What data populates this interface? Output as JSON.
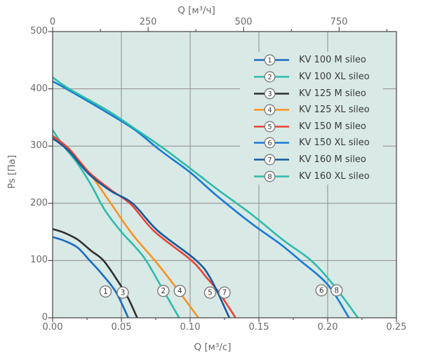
{
  "colors": {
    "background": "#ffffff",
    "plot_background": "#d9e9e6",
    "grid": "#8c8c8c",
    "axis": "#4f4f4f",
    "tick_text": "#696969",
    "legend_text": "#3a3a3a",
    "marker_stroke": "#7a7a7a",
    "marker_number": "#333333"
  },
  "chart_data": {
    "type": "line",
    "title": "",
    "xlabel_top": "Q [м³/ч]",
    "xlabel_bottom": "Q [м³/с]",
    "ylabel": "Ps [Па]",
    "xlim": [
      0,
      0.25
    ],
    "ylim": [
      0,
      500
    ],
    "grid": true,
    "legend_position": "top-right",
    "x_axis_top": {
      "unit": "м³/ч",
      "max": 900,
      "major_ticks": [
        0,
        250,
        500,
        750
      ],
      "minor_ticks": [
        125,
        375,
        625,
        875
      ],
      "labels": [
        "0",
        "250",
        "500",
        "750"
      ]
    },
    "x_axis_bottom": {
      "unit": "м³/с",
      "major_ticks": [
        0,
        0.05,
        0.1,
        0.15,
        0.2,
        0.25
      ],
      "minor_ticks": [
        0.025,
        0.075,
        0.125,
        0.175,
        0.225
      ],
      "labels": [
        "0.00",
        "0.05",
        "0.10",
        "0.15",
        "0.20",
        "0.25"
      ]
    },
    "y_axis": {
      "unit": "Па",
      "major_ticks": [
        500,
        400,
        300,
        200,
        100,
        0
      ],
      "labels": [
        "500",
        "400",
        "300",
        "200",
        "100",
        "0"
      ]
    },
    "series": [
      {
        "num": "1",
        "label": "KV 100 M sileo",
        "color": "#1b6cc0",
        "points": [
          [
            0,
            141
          ],
          [
            0.008,
            135
          ],
          [
            0.018,
            123
          ],
          [
            0.027,
            100
          ],
          [
            0.036,
            76
          ],
          [
            0.046,
            45
          ],
          [
            0.055,
            0
          ]
        ],
        "marker": {
          "x": 0.0385,
          "y": 46
        }
      },
      {
        "num": "2",
        "label": "KV 100 XL sileo",
        "color": "#2cbcaa",
        "points": [
          [
            0,
            328
          ],
          [
            0.008,
            300
          ],
          [
            0.018,
            270
          ],
          [
            0.028,
            232
          ],
          [
            0.038,
            188
          ],
          [
            0.05,
            150
          ],
          [
            0.06,
            124
          ],
          [
            0.068,
            100
          ],
          [
            0.081,
            46
          ],
          [
            0.092,
            0
          ]
        ],
        "marker": {
          "x": 0.0805,
          "y": 47
        }
      },
      {
        "num": "3",
        "label": "KV 125 M sileo",
        "color": "#2f2f2f",
        "points": [
          [
            0,
            155
          ],
          [
            0.008,
            149
          ],
          [
            0.018,
            137
          ],
          [
            0.028,
            117
          ],
          [
            0.037,
            100
          ],
          [
            0.048,
            62
          ],
          [
            0.055,
            34
          ],
          [
            0.0615,
            0
          ]
        ],
        "marker": {
          "x": 0.051,
          "y": 44
        }
      },
      {
        "num": "4",
        "label": "KV 125 XL sileo",
        "color": "#f79420",
        "points": [
          [
            0,
            312
          ],
          [
            0.01,
            298
          ],
          [
            0.027,
            252
          ],
          [
            0.042,
            201
          ],
          [
            0.058,
            146
          ],
          [
            0.075,
            98
          ],
          [
            0.09,
            52
          ],
          [
            0.106,
            0
          ]
        ],
        "marker": {
          "x": 0.0925,
          "y": 47
        }
      },
      {
        "num": "5",
        "label": "KV 150 M sileo",
        "color": "#ee4233",
        "points": [
          [
            0,
            318
          ],
          [
            0.012,
            295
          ],
          [
            0.026,
            255
          ],
          [
            0.042,
            224
          ],
          [
            0.057,
            198
          ],
          [
            0.074,
            151
          ],
          [
            0.101,
            100
          ],
          [
            0.112,
            70
          ],
          [
            0.121,
            44
          ],
          [
            0.133,
            0
          ]
        ],
        "marker": {
          "x": 0.1145,
          "y": 44
        }
      },
      {
        "num": "6",
        "label": "KV 150 XL sileo",
        "color": "#187ad4",
        "points": [
          [
            0,
            413
          ],
          [
            0.01,
            400
          ],
          [
            0.04,
            358
          ],
          [
            0.06,
            328
          ],
          [
            0.078,
            293
          ],
          [
            0.1,
            254
          ],
          [
            0.12,
            212
          ],
          [
            0.145,
            164
          ],
          [
            0.166,
            128
          ],
          [
            0.18,
            100
          ],
          [
            0.2,
            58
          ],
          [
            0.2155,
            0
          ]
        ],
        "marker": {
          "x": 0.1955,
          "y": 48
        }
      },
      {
        "num": "7",
        "label": "KV 160 M sileo",
        "color": "#155a9e",
        "points": [
          [
            0,
            314
          ],
          [
            0.012,
            291
          ],
          [
            0.026,
            252
          ],
          [
            0.042,
            222
          ],
          [
            0.058,
            200
          ],
          [
            0.0765,
            152
          ],
          [
            0.104,
            101
          ],
          [
            0.115,
            68
          ],
          [
            0.1285,
            0
          ]
        ],
        "marker": {
          "x": 0.125,
          "y": 44
        }
      },
      {
        "num": "8",
        "label": "KV 160 XL sileo",
        "color": "#2cbcaa",
        "points": [
          [
            0,
            420
          ],
          [
            0.012,
            400
          ],
          [
            0.04,
            362
          ],
          [
            0.06,
            330
          ],
          [
            0.08,
            297
          ],
          [
            0.1,
            261
          ],
          [
            0.12,
            224
          ],
          [
            0.145,
            180
          ],
          [
            0.168,
            135
          ],
          [
            0.188,
            100
          ],
          [
            0.205,
            55
          ],
          [
            0.222,
            0
          ]
        ],
        "marker": {
          "x": 0.2065,
          "y": 48
        }
      }
    ]
  }
}
